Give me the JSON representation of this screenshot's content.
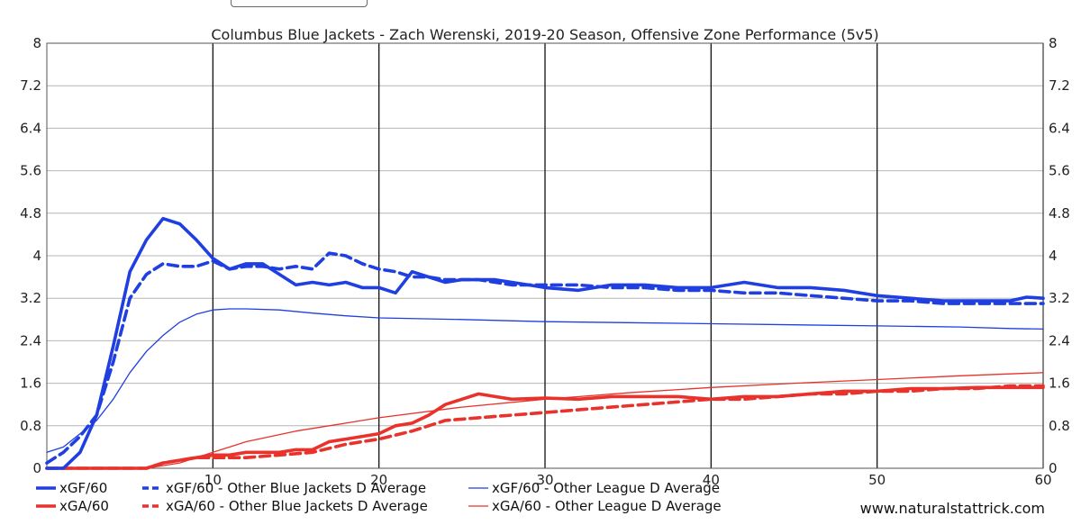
{
  "chart_data": {
    "type": "line",
    "title": "Columbus Blue Jackets - Zach Werenski, 2019-20 Season, Offensive Zone Performance (5v5)",
    "xlim": [
      0,
      60
    ],
    "ylim": [
      0,
      8
    ],
    "x_ticks": [
      "10",
      "20",
      "30",
      "40",
      "50",
      "60"
    ],
    "y_ticks": [
      "0",
      "0.8",
      "1.6",
      "2.4",
      "3.2",
      "4",
      "4.8",
      "5.6",
      "6.4",
      "7.2",
      "8"
    ],
    "grid": true,
    "legend_position": "bottom-left",
    "series": [
      {
        "name": "xGF/60",
        "color": "#1f3fe0",
        "style": "solid",
        "weight": "thick",
        "x": [
          0,
          1,
          2,
          3,
          4,
          5,
          6,
          7,
          8,
          9,
          10,
          11,
          12,
          13,
          14,
          15,
          16,
          17,
          18,
          19,
          20,
          21,
          22,
          23,
          24,
          25,
          26,
          27,
          28,
          29,
          30,
          32,
          34,
          36,
          38,
          40,
          42,
          44,
          46,
          48,
          50,
          52,
          54,
          56,
          58,
          59,
          60
        ],
        "y": [
          0,
          0,
          0.3,
          1.0,
          2.3,
          3.7,
          4.3,
          4.7,
          4.6,
          4.3,
          3.95,
          3.75,
          3.85,
          3.85,
          3.65,
          3.45,
          3.5,
          3.45,
          3.5,
          3.4,
          3.4,
          3.3,
          3.7,
          3.6,
          3.5,
          3.55,
          3.55,
          3.55,
          3.5,
          3.45,
          3.4,
          3.35,
          3.45,
          3.45,
          3.4,
          3.4,
          3.5,
          3.4,
          3.4,
          3.35,
          3.25,
          3.2,
          3.15,
          3.15,
          3.15,
          3.22,
          3.2
        ]
      },
      {
        "name": "xGF/60 - Other Blue Jackets D Average",
        "color": "#1f3fe0",
        "style": "dashed",
        "weight": "thick",
        "x": [
          0,
          1,
          2,
          3,
          4,
          5,
          6,
          7,
          8,
          9,
          10,
          11,
          12,
          13,
          14,
          15,
          16,
          17,
          18,
          19,
          20,
          21,
          22,
          23,
          24,
          25,
          26,
          27,
          28,
          29,
          30,
          32,
          34,
          36,
          38,
          40,
          42,
          44,
          46,
          48,
          50,
          52,
          54,
          56,
          58,
          60
        ],
        "y": [
          0.1,
          0.3,
          0.6,
          1.0,
          2.0,
          3.2,
          3.65,
          3.85,
          3.8,
          3.8,
          3.9,
          3.75,
          3.8,
          3.8,
          3.75,
          3.8,
          3.75,
          4.05,
          4.0,
          3.85,
          3.75,
          3.7,
          3.6,
          3.6,
          3.55,
          3.55,
          3.55,
          3.5,
          3.45,
          3.45,
          3.45,
          3.45,
          3.4,
          3.4,
          3.35,
          3.35,
          3.3,
          3.3,
          3.25,
          3.2,
          3.15,
          3.15,
          3.1,
          3.1,
          3.1,
          3.1
        ]
      },
      {
        "name": "xGF/60 - Other League D Average",
        "color": "#1f3fe0",
        "style": "solid",
        "weight": "thin",
        "x": [
          0,
          1,
          2,
          3,
          4,
          5,
          6,
          7,
          8,
          9,
          10,
          11,
          12,
          14,
          16,
          18,
          20,
          25,
          30,
          35,
          40,
          45,
          50,
          55,
          58,
          60
        ],
        "y": [
          0.3,
          0.4,
          0.65,
          0.9,
          1.3,
          1.8,
          2.2,
          2.5,
          2.75,
          2.9,
          2.98,
          3.0,
          3.0,
          2.98,
          2.92,
          2.87,
          2.83,
          2.8,
          2.76,
          2.74,
          2.72,
          2.7,
          2.68,
          2.66,
          2.63,
          2.62
        ]
      },
      {
        "name": "xGA/60",
        "color": "#e8322b",
        "style": "solid",
        "weight": "thick",
        "x": [
          0,
          2,
          4,
          6,
          7,
          8,
          9,
          10,
          11,
          12,
          14,
          15,
          16,
          17,
          18,
          19,
          20,
          21,
          22,
          23,
          24,
          25,
          26,
          27,
          28,
          30,
          32,
          34,
          36,
          38,
          40,
          42,
          44,
          46,
          48,
          50,
          52,
          54,
          56,
          58,
          60
        ],
        "y": [
          0,
          0,
          0,
          0,
          0.1,
          0.15,
          0.2,
          0.25,
          0.25,
          0.3,
          0.3,
          0.35,
          0.35,
          0.5,
          0.55,
          0.6,
          0.65,
          0.8,
          0.85,
          1.0,
          1.2,
          1.3,
          1.4,
          1.35,
          1.3,
          1.32,
          1.3,
          1.35,
          1.35,
          1.35,
          1.3,
          1.35,
          1.35,
          1.4,
          1.45,
          1.45,
          1.5,
          1.5,
          1.52,
          1.52,
          1.52
        ]
      },
      {
        "name": "xGA/60 - Other Blue Jackets D Average",
        "color": "#e8322b",
        "style": "dashed",
        "weight": "thick",
        "x": [
          0,
          2,
          4,
          6,
          7,
          8,
          9,
          10,
          12,
          14,
          16,
          18,
          20,
          22,
          24,
          26,
          28,
          30,
          32,
          34,
          36,
          38,
          40,
          42,
          44,
          46,
          48,
          50,
          52,
          54,
          56,
          58,
          60
        ],
        "y": [
          0,
          0,
          0,
          0,
          0.1,
          0.15,
          0.2,
          0.2,
          0.2,
          0.25,
          0.3,
          0.45,
          0.55,
          0.7,
          0.9,
          0.95,
          1.0,
          1.05,
          1.1,
          1.15,
          1.2,
          1.25,
          1.3,
          1.3,
          1.35,
          1.4,
          1.4,
          1.45,
          1.45,
          1.5,
          1.5,
          1.55,
          1.55
        ]
      },
      {
        "name": "xGA/60 - Other League D Average",
        "color": "#e8322b",
        "style": "solid",
        "weight": "thin",
        "x": [
          0,
          2,
          4,
          6,
          8,
          10,
          12,
          15,
          18,
          20,
          25,
          30,
          35,
          40,
          45,
          50,
          55,
          60
        ],
        "y": [
          0,
          0,
          0,
          0,
          0.1,
          0.3,
          0.5,
          0.7,
          0.85,
          0.95,
          1.15,
          1.3,
          1.42,
          1.52,
          1.6,
          1.67,
          1.74,
          1.8
        ]
      }
    ],
    "source": "www.naturalstattrick.com"
  }
}
